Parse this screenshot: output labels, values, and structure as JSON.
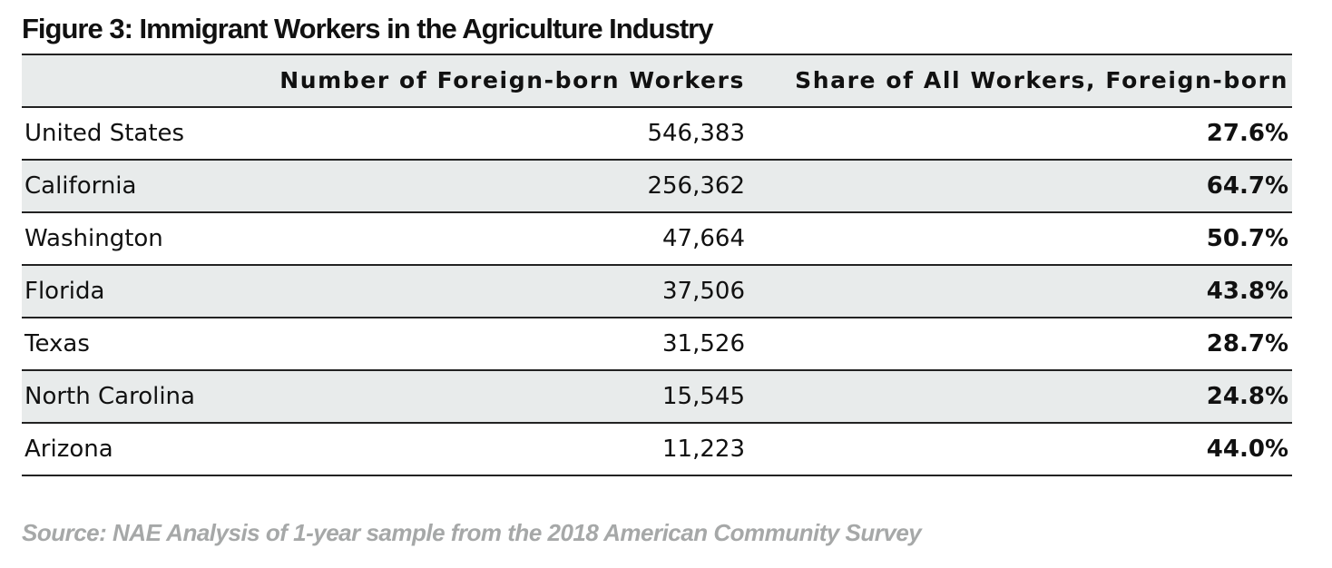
{
  "title": "Figure 3: Immigrant Workers in the Agriculture Industry",
  "source": "Source: NAE Analysis of 1-year sample from the 2018 American Community Survey",
  "chart_data": {
    "type": "table",
    "title": "Figure 3: Immigrant Workers in the Agriculture Industry",
    "columns": [
      "",
      "Number of Foreign-born Workers",
      "Share of All Workers, Foreign-born"
    ],
    "rows": [
      {
        "name": "United States",
        "number": "546,383",
        "share": "27.6%"
      },
      {
        "name": "California",
        "number": "256,362",
        "share": "64.7%"
      },
      {
        "name": "Washington",
        "number": "47,664",
        "share": "50.7%"
      },
      {
        "name": "Florida",
        "number": "37,506",
        "share": "43.8%"
      },
      {
        "name": "Texas",
        "number": "31,526",
        "share": "28.7%"
      },
      {
        "name": "North Carolina",
        "number": "15,545",
        "share": "24.8%"
      },
      {
        "name": "Arizona",
        "number": "11,223",
        "share": "44.0%"
      }
    ],
    "colors": {
      "shaded_row": "#e8ebeb",
      "rule": "#222222",
      "source_text": "#a6a8a8"
    }
  }
}
